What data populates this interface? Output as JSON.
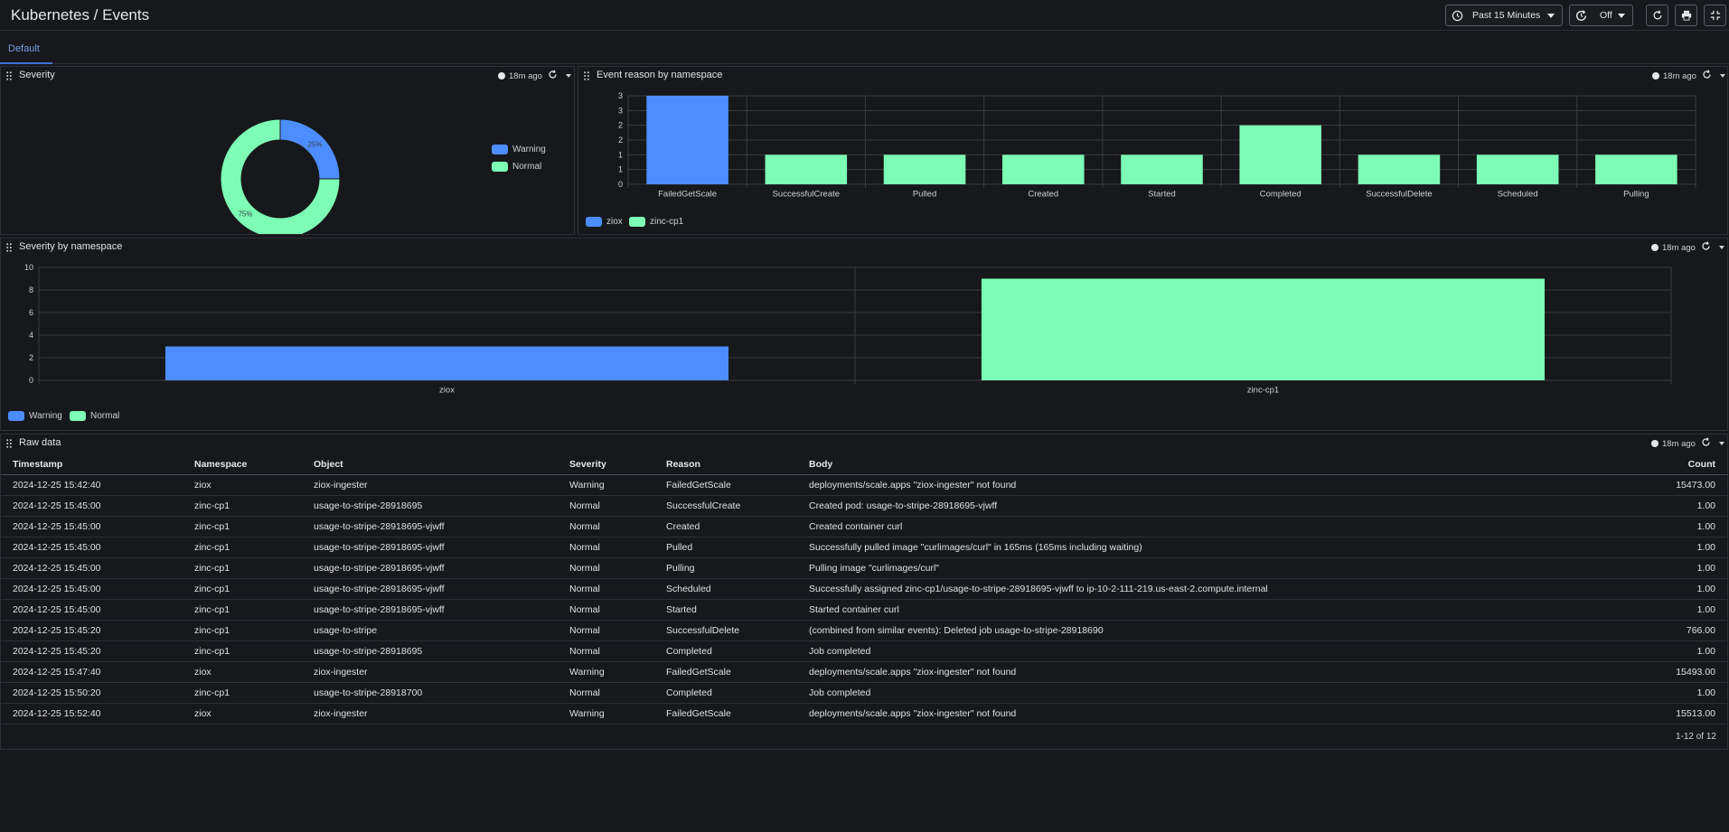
{
  "header": {
    "title": "Kubernetes / Events",
    "time_range": "Past 15 Minutes",
    "refresh": "Off"
  },
  "tabs": [
    {
      "label": "Default"
    }
  ],
  "colors": {
    "warning": "#4c8dff",
    "normal": "#7cfcb4",
    "bg": "#17181b",
    "grid": "#3a3c42"
  },
  "panels": {
    "severity": {
      "title": "Severity",
      "updated": "18m ago",
      "chart_data": {
        "type": "pie",
        "variant": "donut",
        "series": [
          {
            "name": "Warning",
            "value": 25,
            "label": "25%"
          },
          {
            "name": "Normal",
            "value": 75,
            "label": "75%"
          }
        ],
        "legend": "right"
      }
    },
    "reason": {
      "title": "Event reason by namespace",
      "updated": "18m ago",
      "chart_data": {
        "type": "bar",
        "categories": [
          "FailedGetScale",
          "SuccessfulCreate",
          "Pulled",
          "Created",
          "Started",
          "Completed",
          "SuccessfulDelete",
          "Scheduled",
          "Pulling"
        ],
        "series": [
          {
            "name": "ziox",
            "values": [
              3,
              0,
              0,
              0,
              0,
              0,
              0,
              0,
              0
            ]
          },
          {
            "name": "zinc-cp1",
            "values": [
              0,
              1,
              1,
              1,
              1,
              2,
              1,
              1,
              1
            ]
          }
        ],
        "y_ticks": [
          "0",
          "1",
          "1",
          "2",
          "2",
          "3",
          "3"
        ],
        "ylim": [
          0,
          3
        ],
        "grid": true,
        "legend": "bottom-left"
      }
    },
    "sev_ns": {
      "title": "Severity by namespace",
      "updated": "18m ago",
      "chart_data": {
        "type": "bar",
        "categories": [
          "ziox",
          "zinc-cp1"
        ],
        "series": [
          {
            "name": "Warning",
            "values": [
              3,
              0
            ]
          },
          {
            "name": "Normal",
            "values": [
              0,
              9
            ]
          }
        ],
        "y_ticks": [
          "0",
          "2",
          "4",
          "6",
          "8",
          "10"
        ],
        "ylim": [
          0,
          10
        ],
        "grid": true,
        "legend": "bottom-left"
      }
    },
    "raw": {
      "title": "Raw data",
      "updated": "18m ago",
      "columns": [
        "Timestamp",
        "Namespace",
        "Object",
        "Severity",
        "Reason",
        "Body",
        "Count"
      ],
      "rows": [
        [
          "2024-12-25 15:42:40",
          "ziox",
          "ziox-ingester",
          "Warning",
          "FailedGetScale",
          "deployments/scale.apps \"ziox-ingester\" not found",
          "15473.00"
        ],
        [
          "2024-12-25 15:45:00",
          "zinc-cp1",
          "usage-to-stripe-28918695",
          "Normal",
          "SuccessfulCreate",
          "Created pod: usage-to-stripe-28918695-vjwff",
          "1.00"
        ],
        [
          "2024-12-25 15:45:00",
          "zinc-cp1",
          "usage-to-stripe-28918695-vjwff",
          "Normal",
          "Created",
          "Created container curl",
          "1.00"
        ],
        [
          "2024-12-25 15:45:00",
          "zinc-cp1",
          "usage-to-stripe-28918695-vjwff",
          "Normal",
          "Pulled",
          "Successfully pulled image \"curlimages/curl\" in 165ms (165ms including waiting)",
          "1.00"
        ],
        [
          "2024-12-25 15:45:00",
          "zinc-cp1",
          "usage-to-stripe-28918695-vjwff",
          "Normal",
          "Pulling",
          "Pulling image \"curlimages/curl\"",
          "1.00"
        ],
        [
          "2024-12-25 15:45:00",
          "zinc-cp1",
          "usage-to-stripe-28918695-vjwff",
          "Normal",
          "Scheduled",
          "Successfully assigned zinc-cp1/usage-to-stripe-28918695-vjwff to ip-10-2-111-219.us-east-2.compute.internal",
          "1.00"
        ],
        [
          "2024-12-25 15:45:00",
          "zinc-cp1",
          "usage-to-stripe-28918695-vjwff",
          "Normal",
          "Started",
          "Started container curl",
          "1.00"
        ],
        [
          "2024-12-25 15:45:20",
          "zinc-cp1",
          "usage-to-stripe",
          "Normal",
          "SuccessfulDelete",
          "(combined from similar events): Deleted job usage-to-stripe-28918690",
          "766.00"
        ],
        [
          "2024-12-25 15:45:20",
          "zinc-cp1",
          "usage-to-stripe-28918695",
          "Normal",
          "Completed",
          "Job completed",
          "1.00"
        ],
        [
          "2024-12-25 15:47:40",
          "ziox",
          "ziox-ingester",
          "Warning",
          "FailedGetScale",
          "deployments/scale.apps \"ziox-ingester\" not found",
          "15493.00"
        ],
        [
          "2024-12-25 15:50:20",
          "zinc-cp1",
          "usage-to-stripe-28918700",
          "Normal",
          "Completed",
          "Job completed",
          "1.00"
        ],
        [
          "2024-12-25 15:52:40",
          "ziox",
          "ziox-ingester",
          "Warning",
          "FailedGetScale",
          "deployments/scale.apps \"ziox-ingester\" not found",
          "15513.00"
        ]
      ],
      "pagination": "1-12 of 12"
    }
  }
}
